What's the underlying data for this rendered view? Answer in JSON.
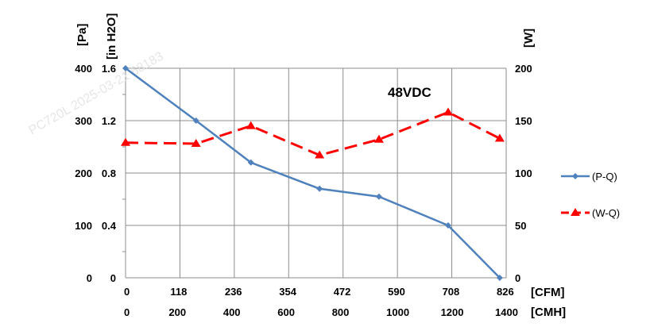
{
  "chart_data": {
    "type": "line",
    "annotation": "48VDC",
    "watermark": "PC720L 2025-03-21 68183",
    "x_axis": {
      "primary_label": "[CFM]",
      "primary_ticks": [
        "0",
        "118",
        "236",
        "354",
        "472",
        "590",
        "708",
        "826"
      ],
      "secondary_label": "[CMH]",
      "secondary_ticks": [
        "0",
        "200",
        "400",
        "600",
        "800",
        "1000",
        "1200",
        "1400"
      ],
      "range": [
        0,
        826
      ]
    },
    "y_left": {
      "primary_label": "[Pa]",
      "primary_ticks": [
        "0",
        "100",
        "200",
        "300",
        "400"
      ],
      "secondary_label": "[in H2O]",
      "secondary_ticks": [
        "0",
        "0.4",
        "0.8",
        "1.2",
        "1.6"
      ],
      "range": [
        0,
        400
      ]
    },
    "y_right": {
      "label": "[W]",
      "ticks": [
        "0",
        "50",
        "100",
        "150",
        "200"
      ],
      "range": [
        0,
        200
      ]
    },
    "grid": true,
    "legend_position": "right",
    "series": [
      {
        "name": "(P-Q)",
        "axis": "left",
        "color": "#4F81BD",
        "marker": "diamond",
        "dash": false,
        "x": [
          0,
          153,
          272,
          421,
          550,
          700,
          812
        ],
        "y": [
          400,
          300,
          220,
          170,
          155,
          100,
          0
        ]
      },
      {
        "name": "(W-Q)",
        "axis": "right",
        "color": "#FF0000",
        "marker": "triangle",
        "dash": true,
        "x": [
          0,
          153,
          272,
          421,
          550,
          700,
          812
        ],
        "y": [
          129,
          128,
          145,
          117,
          132,
          158,
          133
        ]
      }
    ]
  }
}
